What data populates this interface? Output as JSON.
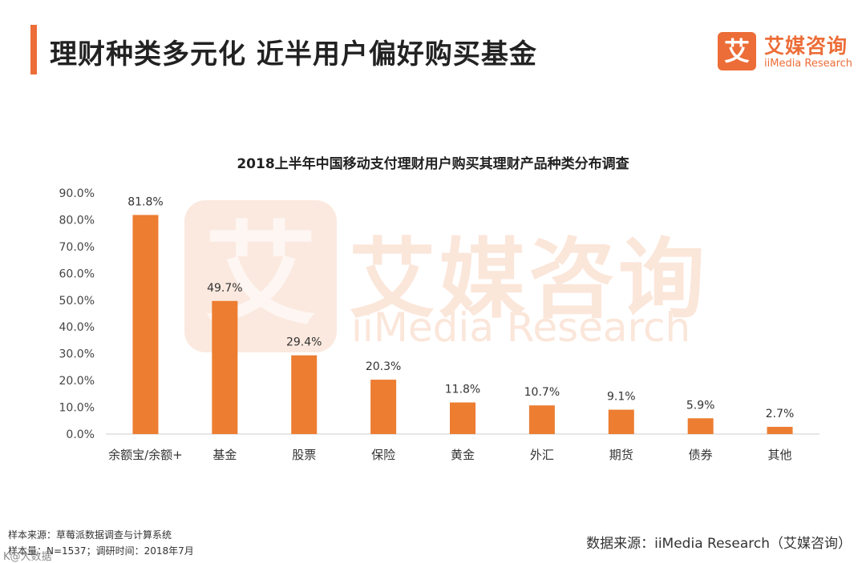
{
  "header": {
    "title": "理财种类多元化 近半用户偏好购买基金",
    "accent_color": "#ec6d37"
  },
  "logo": {
    "mark": "艾",
    "name_cn": "艾媒咨询",
    "name_en": "iiMedia Research"
  },
  "watermark": {
    "mark": "艾",
    "name_cn": "艾媒咨询",
    "name_en": "iiMedia Research"
  },
  "chart_data": {
    "type": "bar",
    "title": "2018上半年中国移动支付理财用户购买其理财产品种类分布调查",
    "categories": [
      "余额宝/余额+",
      "基金",
      "股票",
      "保险",
      "黄金",
      "外汇",
      "期货",
      "债券",
      "其他"
    ],
    "values": [
      81.8,
      49.7,
      29.4,
      20.3,
      11.8,
      10.7,
      9.1,
      5.9,
      2.7
    ],
    "value_labels": [
      "81.8%",
      "49.7%",
      "29.4%",
      "20.3%",
      "11.8%",
      "10.7%",
      "9.1%",
      "5.9%",
      "2.7%"
    ],
    "y_ticks": [
      "0.0%",
      "10.0%",
      "20.0%",
      "30.0%",
      "40.0%",
      "50.0%",
      "60.0%",
      "70.0%",
      "80.0%",
      "90.0%"
    ],
    "ylim": [
      0,
      90
    ],
    "grid": false,
    "bar_color": "#ec7d31",
    "xlabel": "",
    "ylabel": ""
  },
  "footer": {
    "sample_source": "样本来源：草莓派数据调查与计算系统",
    "sample_size": "样本量：N=1537；调研时间：2018年7月",
    "data_source": "数据来源：iiMedia Research（艾媒咨询）",
    "corner_mark": "K@大数据"
  }
}
